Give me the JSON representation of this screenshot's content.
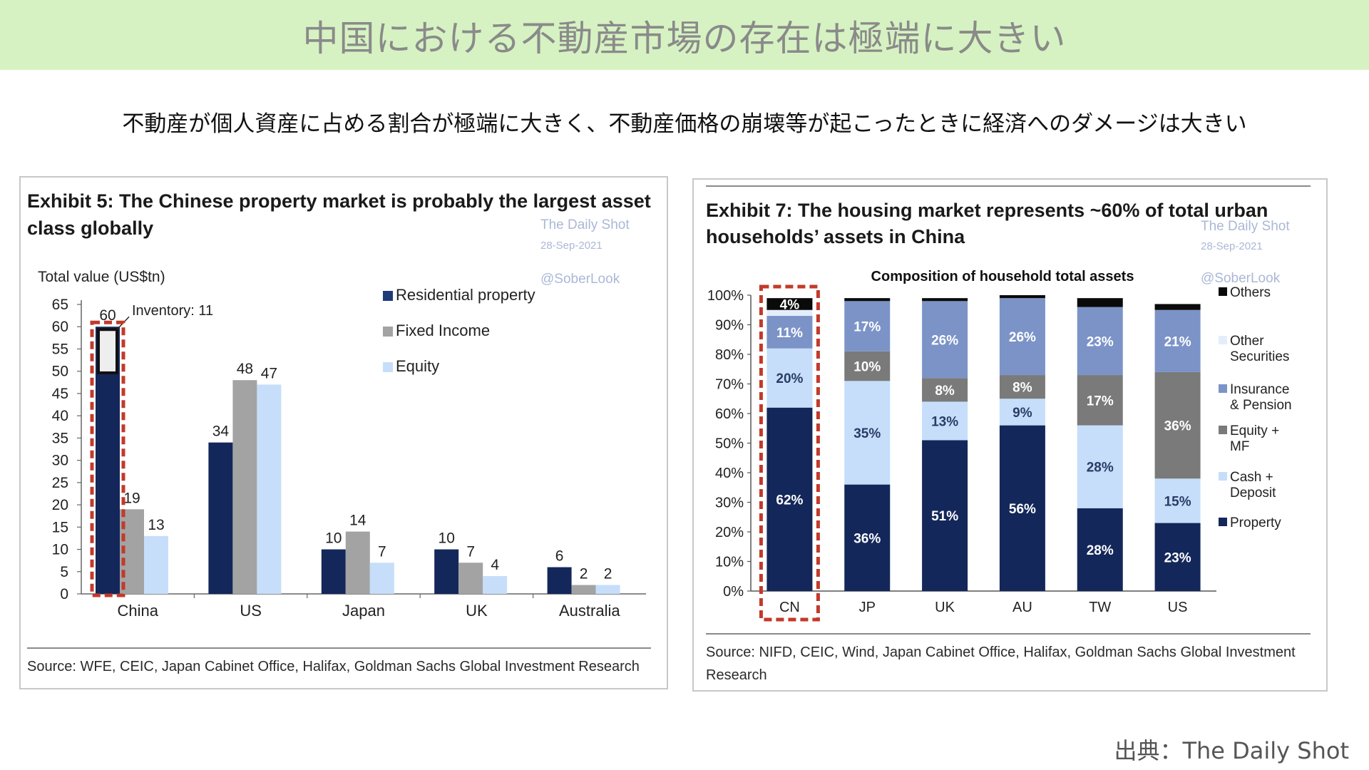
{
  "header": {
    "title": "中国における不動産市場の存在は極端に大きい",
    "subtitle": "不動産が個人資産に占める割合が極端に大きく、不動産価格の崩壊等が起こったときに経済へのダメージは大きい"
  },
  "exhibit5": {
    "title_line1": "Exhibit 5: The Chinese property market is probably the largest asset",
    "title_line2": "class globally",
    "watermark": {
      "line1": "The Daily Shot",
      "line2": "28-Sep-2021",
      "line3": "@SoberLook"
    },
    "source": "Source: WFE, CEIC, Japan Cabinet Office, Halifax, Goldman Sachs Global Investment Research"
  },
  "exhibit7": {
    "title_line1": "Exhibit 7: The housing market represents ~60% of total urban",
    "title_line2": "households’ assets in China",
    "watermark": {
      "line1": "The Daily Shot",
      "line2": "28-Sep-2021",
      "line3": "@SoberLook"
    },
    "source_line1": "Source: NIFD, CEIC, Wind, Japan Cabinet Office, Halifax, Goldman Sachs Global Investment",
    "source_line2": "Research"
  },
  "credit": "出典：The Daily Shot",
  "colors": {
    "navy": "#14275a",
    "gray": "#a3a3a3",
    "light_blue": "#c6defa",
    "mid_blue": "#7b93c7",
    "dark_gray": "#7a7a7a",
    "black": "#0a0a0a",
    "highlight": "#c23a2a"
  },
  "chart_data": [
    {
      "type": "bar",
      "ylabel": "Total value (US$tn)",
      "ylim": [
        0,
        65
      ],
      "yticks": [
        0,
        5,
        10,
        15,
        20,
        25,
        30,
        35,
        40,
        45,
        50,
        55,
        60,
        65
      ],
      "categories": [
        "China",
        "US",
        "Japan",
        "UK",
        "Australia"
      ],
      "series": [
        {
          "name": "Residential property",
          "values": [
            60,
            34,
            10,
            10,
            6
          ]
        },
        {
          "name": "Fixed Income",
          "values": [
            19,
            48,
            14,
            7,
            2
          ]
        },
        {
          "name": "Equity",
          "values": [
            13,
            47,
            7,
            4,
            2
          ]
        }
      ],
      "annotations": [
        {
          "text": "Inventory: 11",
          "category": "China",
          "series": "Residential property",
          "value": 11
        }
      ],
      "legend_position": "top-right",
      "highlight": "China"
    },
    {
      "type": "bar",
      "stacked": true,
      "title": "Composition of household total assets",
      "ylim": [
        0,
        100
      ],
      "yticks": [
        "0%",
        "10%",
        "20%",
        "30%",
        "40%",
        "50%",
        "60%",
        "70%",
        "80%",
        "90%",
        "100%"
      ],
      "categories": [
        "CN",
        "JP",
        "UK",
        "AU",
        "TW",
        "US"
      ],
      "series": [
        {
          "name": "Property",
          "values": [
            62,
            36,
            51,
            56,
            28,
            23
          ],
          "labels": [
            "62%",
            "36%",
            "51%",
            "56%",
            "28%",
            "23%"
          ]
        },
        {
          "name": "Cash + Deposit",
          "values": [
            20,
            35,
            13,
            9,
            28,
            15
          ],
          "labels": [
            "20%",
            "35%",
            "13%",
            "9%",
            "28%",
            "15%"
          ]
        },
        {
          "name": "Equity + MF",
          "values": [
            0,
            10,
            8,
            8,
            17,
            36
          ],
          "labels": [
            "",
            "10%",
            "8%",
            "8%",
            "17%",
            "36%"
          ]
        },
        {
          "name": "Insurance & Pension",
          "values": [
            11,
            17,
            26,
            26,
            23,
            21
          ],
          "labels": [
            "11%",
            "17%",
            "26%",
            "26%",
            "23%",
            "21%"
          ]
        },
        {
          "name": "Other Securities",
          "values": [
            2,
            0,
            0,
            0,
            0,
            0
          ],
          "labels": [
            "",
            "",
            "",
            "",
            "",
            ""
          ]
        },
        {
          "name": "Others",
          "values": [
            4,
            1,
            1,
            1,
            3,
            2
          ],
          "labels": [
            "4%",
            "",
            "",
            "",
            "",
            ""
          ]
        }
      ],
      "legend": [
        "Others",
        "Other Securities",
        "Insurance & Pension",
        "Equity + MF",
        "Cash + Deposit",
        "Property"
      ],
      "legend_position": "right",
      "highlight": "CN"
    }
  ]
}
